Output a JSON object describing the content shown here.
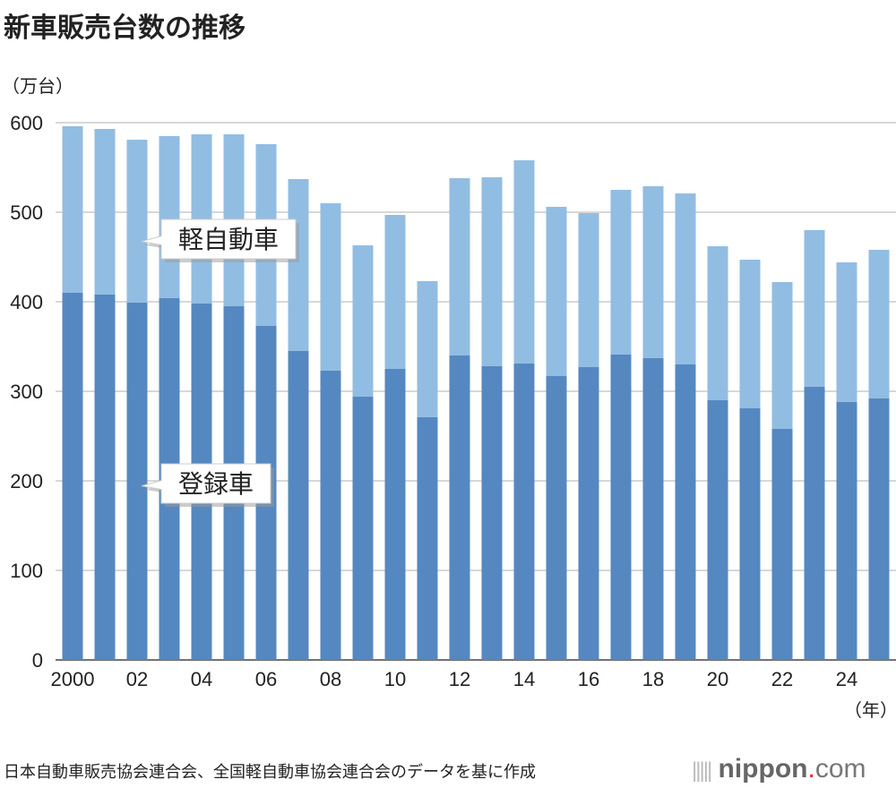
{
  "title": "新車販売台数の推移",
  "unit": "（万台）",
  "source": "日本自動車販売協会連合会、全国軽自動車協会連合会のデータを基に作成",
  "logo": {
    "name": "nippon",
    "dot": ".",
    "tld": "com"
  },
  "chart_data": {
    "type": "bar",
    "stacked": true,
    "title": "新車販売台数の推移",
    "ylabel": "（万台）",
    "xlabel": "（年）",
    "ylim": [
      0,
      600
    ],
    "yticks": [
      0,
      100,
      200,
      300,
      400,
      500,
      600
    ],
    "grid": true,
    "x": [
      2000,
      2001,
      2002,
      2003,
      2004,
      2005,
      2006,
      2007,
      2008,
      2009,
      2010,
      2011,
      2012,
      2013,
      2014,
      2015,
      2016,
      2017,
      2018,
      2019,
      2020,
      2021,
      2022,
      2023,
      2024,
      2025
    ],
    "xtick_labels": [
      "2000",
      "",
      "02",
      "",
      "04",
      "",
      "06",
      "",
      "08",
      "",
      "10",
      "",
      "12",
      "",
      "14",
      "",
      "16",
      "",
      "18",
      "",
      "20",
      "",
      "22",
      "",
      "24",
      ""
    ],
    "series": [
      {
        "name": "登録車",
        "color": "#5588c0",
        "values": [
          410,
          408,
          399,
          404,
          398,
          395,
          373,
          345,
          323,
          294,
          325,
          271,
          340,
          328,
          331,
          317,
          327,
          341,
          337,
          330,
          290,
          281,
          258,
          305,
          288,
          292
        ]
      },
      {
        "name": "軽自動車",
        "color": "#92bde2",
        "values": [
          186,
          185,
          182,
          181,
          189,
          192,
          203,
          192,
          187,
          169,
          172,
          152,
          198,
          211,
          227,
          189,
          172,
          184,
          192,
          191,
          172,
          166,
          164,
          175,
          156,
          166
        ]
      }
    ]
  }
}
